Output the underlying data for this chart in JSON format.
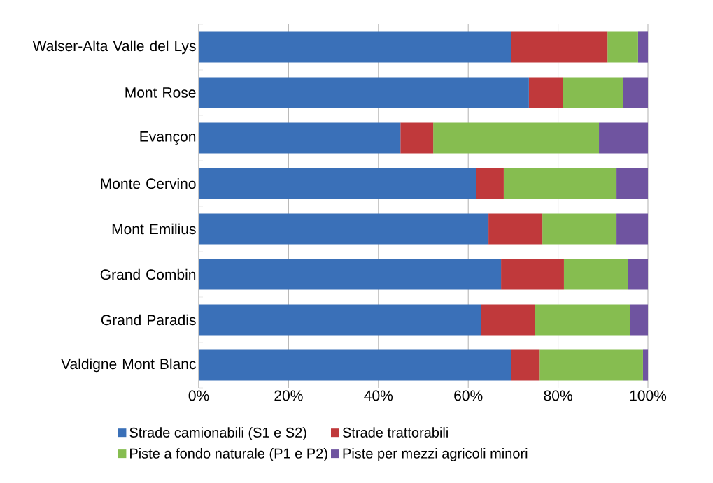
{
  "chart_data": {
    "type": "bar",
    "orientation": "horizontal",
    "stacked": true,
    "categories": [
      "Walser-Alta Valle del Lys",
      "Mont Rose",
      "Evançon",
      "Monte Cervino",
      "Mont Emilius",
      "Grand Combin",
      "Grand Paradis",
      "Valdigne Mont Blanc"
    ],
    "series": [
      {
        "name": "Strade camionabili (S1 e S2)",
        "color": "#3a70b8",
        "values": [
          69.5,
          73.5,
          44.9,
          61.8,
          64.5,
          67.3,
          62.9,
          69.5
        ]
      },
      {
        "name": "Strade trattorabili",
        "color": "#c0393b",
        "values": [
          21.5,
          7.5,
          7.3,
          6.1,
          12.0,
          14.0,
          12.0,
          6.4
        ]
      },
      {
        "name": "Piste a fondo naturale (P1 e P2)",
        "color": "#86bd50",
        "values": [
          6.8,
          13.4,
          36.9,
          25.1,
          16.5,
          14.3,
          21.2,
          23.0
        ]
      },
      {
        "name": "Piste per mezzi agricoli minori",
        "color": "#6f54a0",
        "values": [
          2.2,
          5.6,
          10.9,
          7.0,
          7.0,
          4.4,
          3.9,
          1.1
        ]
      }
    ],
    "xlim": [
      0,
      100
    ],
    "xticks": [
      {
        "value": 0,
        "label": "0%"
      },
      {
        "value": 20,
        "label": "20%"
      },
      {
        "value": 40,
        "label": "40%"
      },
      {
        "value": 60,
        "label": "60%"
      },
      {
        "value": 80,
        "label": "80%"
      },
      {
        "value": 100,
        "label": "100%"
      }
    ],
    "grid": "x",
    "legend": "bottom"
  }
}
